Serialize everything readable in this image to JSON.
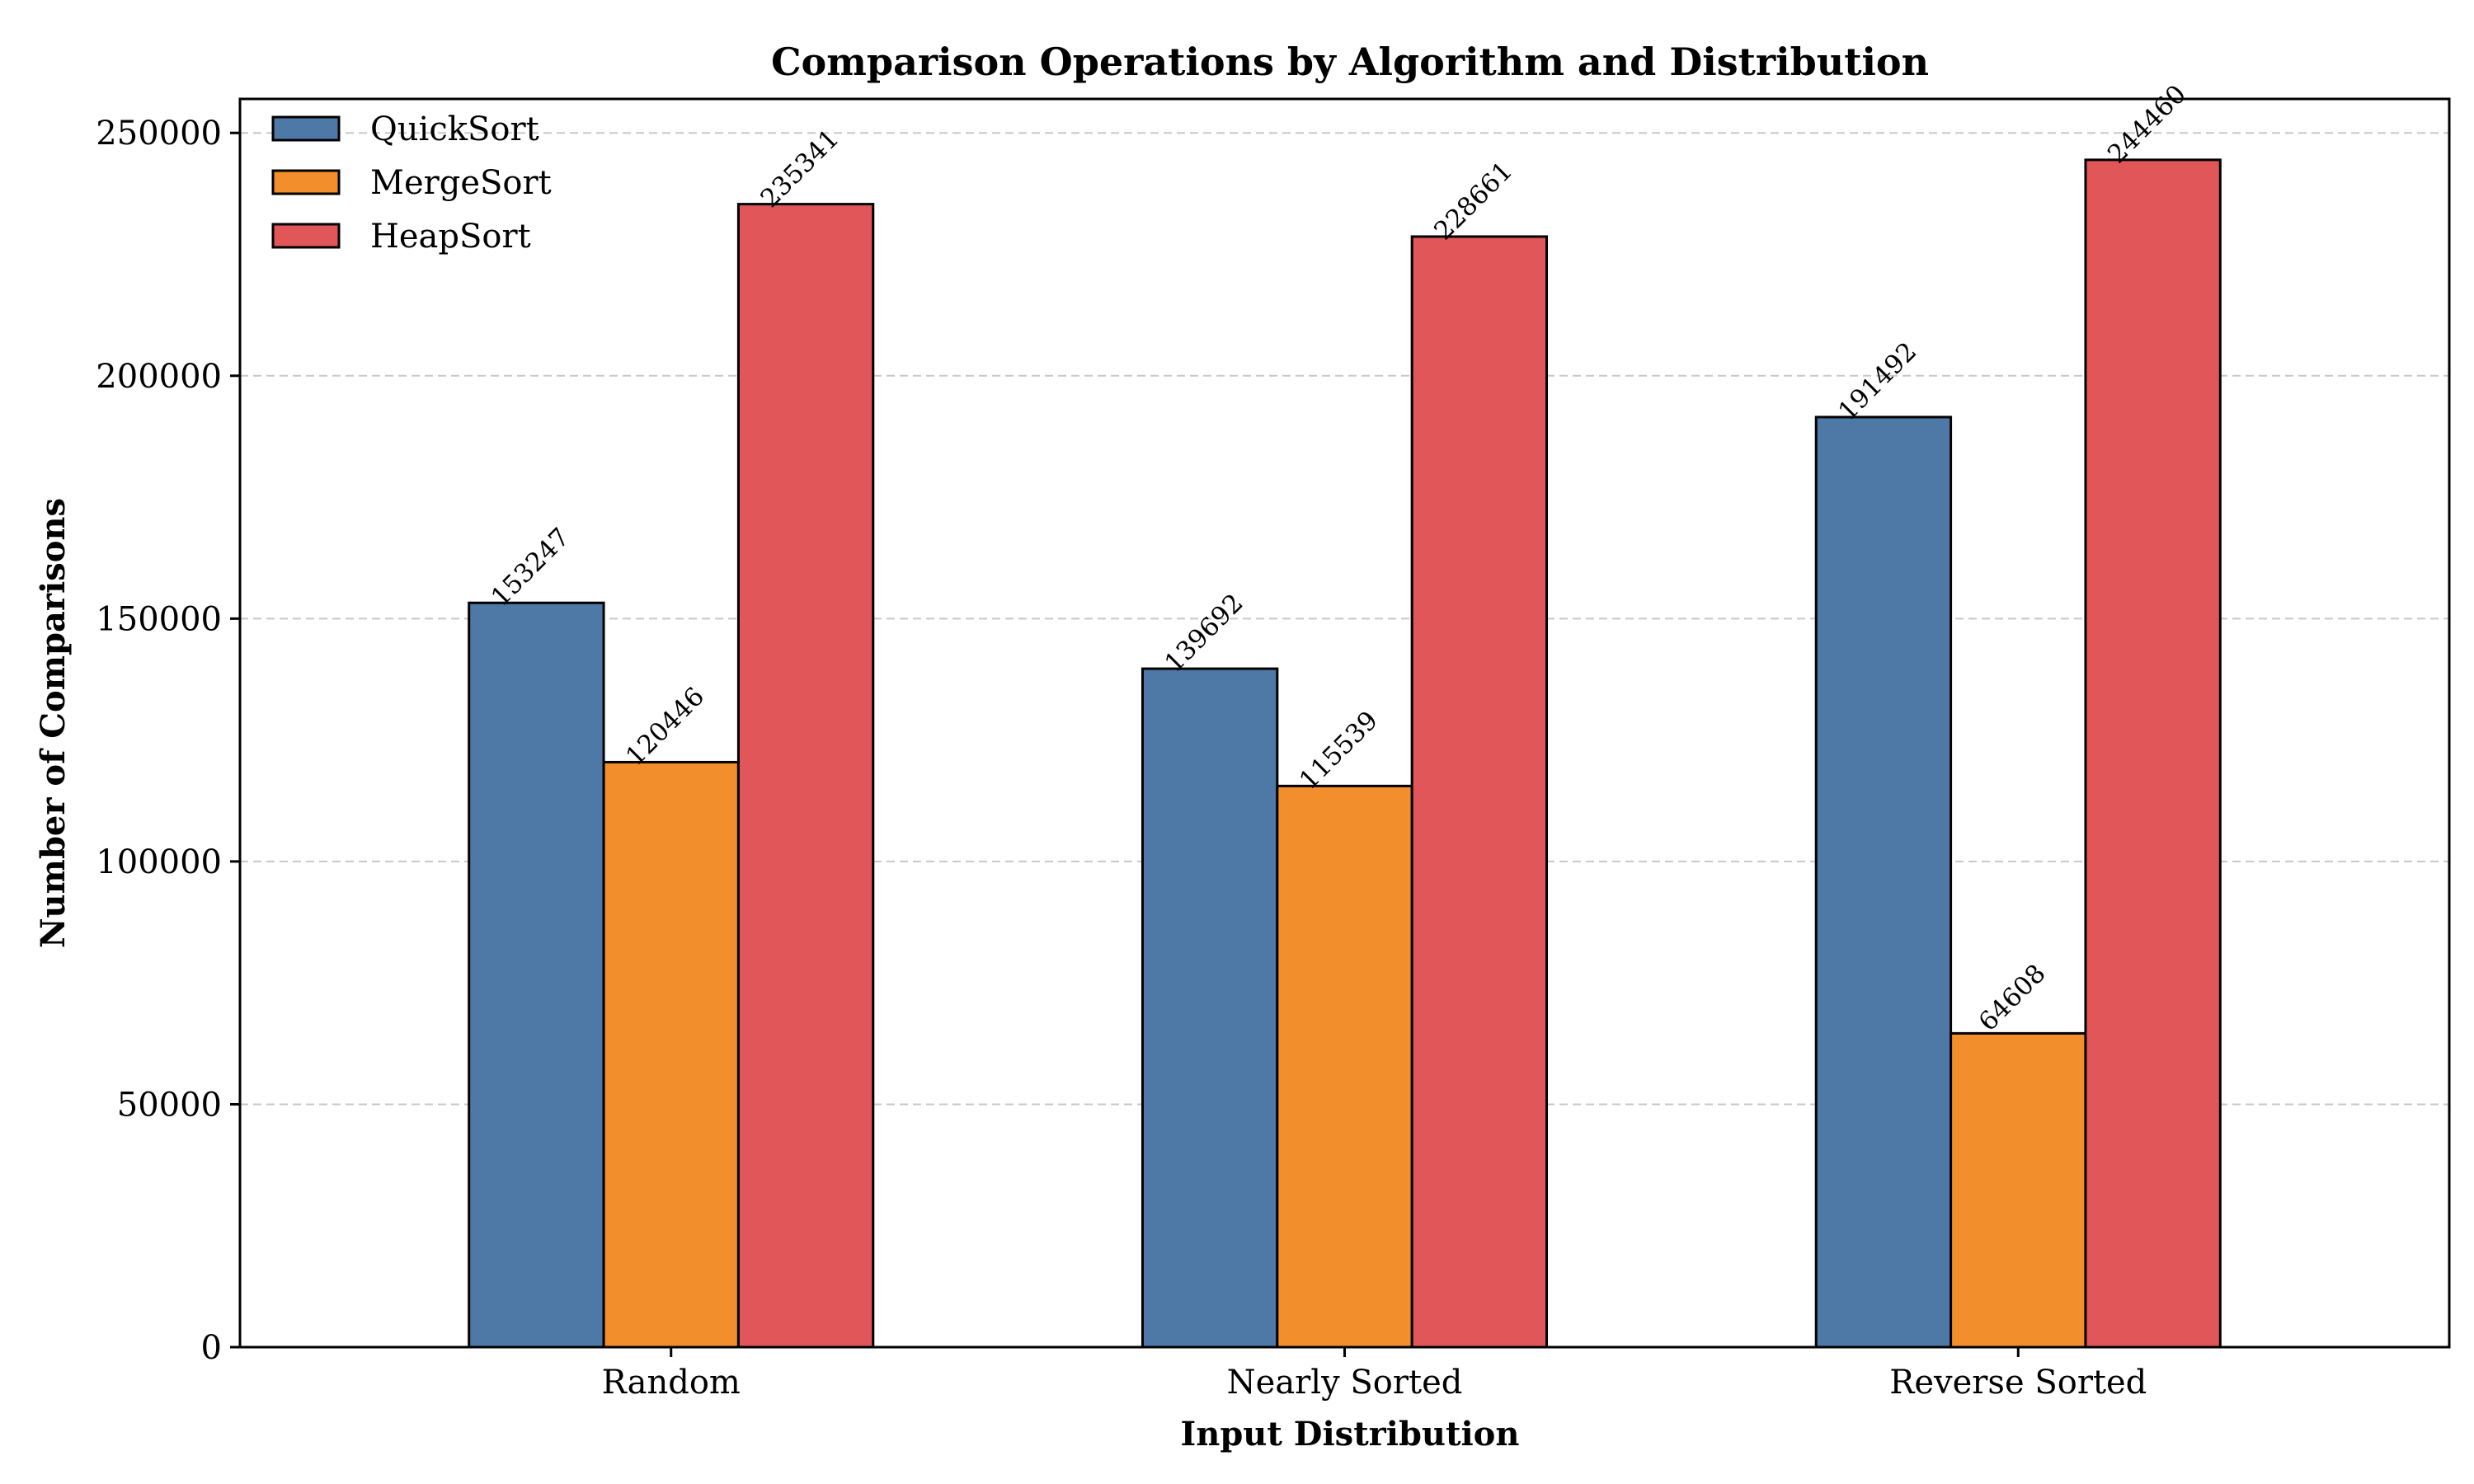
{
  "chart_data": {
    "type": "bar",
    "title": "Comparison Operations by Algorithm and Distribution",
    "xlabel": "Input Distribution",
    "ylabel": "Number of Comparisons",
    "categories": [
      "Random",
      "Nearly Sorted",
      "Reverse Sorted"
    ],
    "series": [
      {
        "name": "QuickSort",
        "values": [
          153247,
          139692,
          191492
        ],
        "color": "#4e79a7"
      },
      {
        "name": "MergeSort",
        "values": [
          120446,
          115539,
          64608
        ],
        "color": "#f28e2b"
      },
      {
        "name": "HeapSort",
        "values": [
          235341,
          228661,
          244460
        ],
        "color": "#e15759"
      }
    ],
    "ylim": [
      0,
      257000
    ],
    "yticks": [
      0,
      50000,
      100000,
      150000,
      200000,
      250000
    ],
    "ytick_labels": [
      "0",
      "50000",
      "100000",
      "150000",
      "200000",
      "250000"
    ],
    "grid": "y-dashed",
    "legend_position": "top-left",
    "data_labels": true
  }
}
